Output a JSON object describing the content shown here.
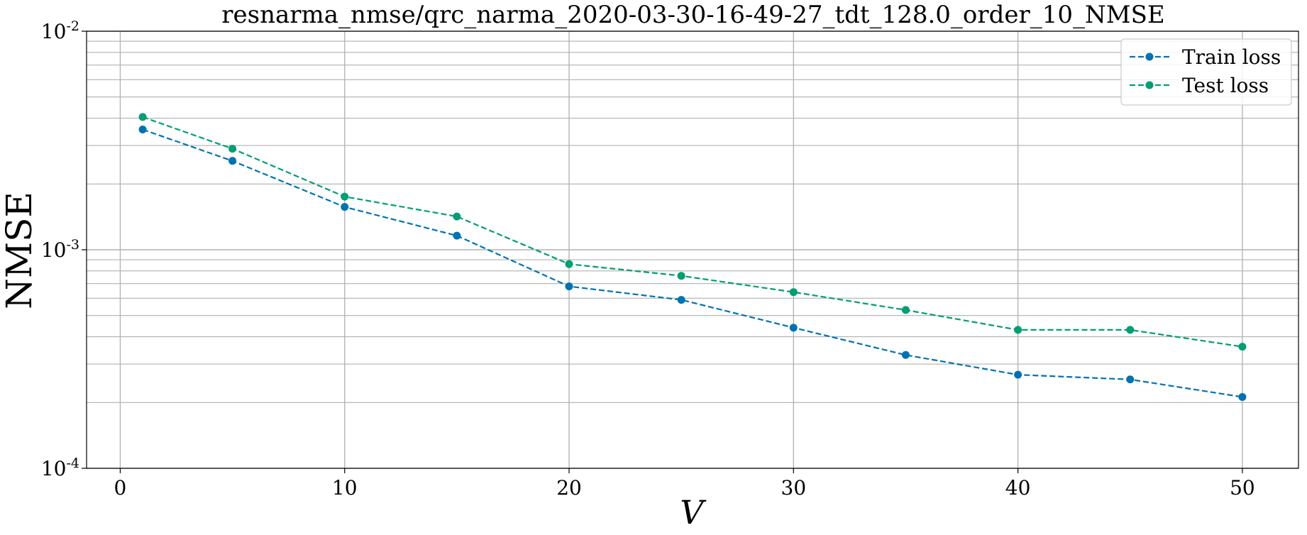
{
  "chart_data": {
    "type": "line",
    "title": "resnarma_nmse/qrc_narma_2020-03-30-16-49-27_tdt_128.0_order_10_NMSE",
    "xlabel": "V",
    "ylabel": "NMSE",
    "x": [
      1,
      5,
      10,
      15,
      20,
      25,
      30,
      35,
      40,
      45,
      50
    ],
    "xlim": [
      -1.5,
      52.5
    ],
    "ylim": [
      0.0001,
      0.01
    ],
    "yscale": "log",
    "grid": true,
    "legend_position": "top-right",
    "x_ticks": [
      0,
      10,
      20,
      30,
      40,
      50
    ],
    "x_tick_labels": [
      "0",
      "10",
      "20",
      "30",
      "40",
      "50"
    ],
    "y_ticks": [
      0.0001,
      0.001,
      0.01
    ],
    "y_tick_labels": [
      {
        "base": "10",
        "exp": "-4"
      },
      {
        "base": "10",
        "exp": "-3"
      },
      {
        "base": "10",
        "exp": "-2"
      }
    ],
    "series": [
      {
        "name": "Train loss",
        "color": "#0072b2",
        "linestyle": "dashed",
        "marker": "circle",
        "values": [
          0.00355,
          0.00255,
          0.00157,
          0.00116,
          0.00068,
          0.00059,
          0.00044,
          0.00033,
          0.000268,
          0.000255,
          0.000212
        ]
      },
      {
        "name": "Test loss",
        "color": "#009e73",
        "linestyle": "dashed",
        "marker": "circle",
        "values": [
          0.00405,
          0.0029,
          0.00175,
          0.00142,
          0.00086,
          0.00076,
          0.00064,
          0.00053,
          0.00043,
          0.00043,
          0.00036
        ]
      }
    ]
  }
}
